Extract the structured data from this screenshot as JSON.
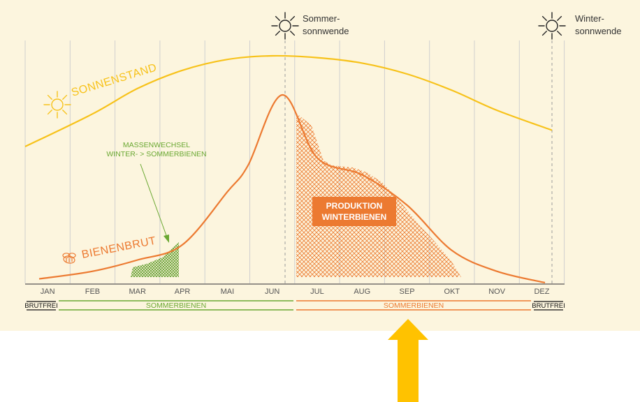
{
  "chart_data": {
    "type": "line",
    "categories": [
      "JAN",
      "FEB",
      "MAR",
      "APR",
      "MAI",
      "JUN",
      "JUL",
      "AUG",
      "SEP",
      "OKT",
      "NOV",
      "DEZ"
    ],
    "series": [
      {
        "name": "SONNENSTAND",
        "values": [
          0.5,
          0.68,
          0.82,
          0.92,
          0.98,
          1.0,
          0.99,
          0.96,
          0.9,
          0.81,
          0.7,
          0.59
        ]
      },
      {
        "name": "BIENENBRUT",
        "values": [
          0.02,
          0.06,
          0.12,
          0.2,
          0.48,
          0.92,
          0.66,
          0.57,
          0.41,
          0.17,
          0.06,
          0.0
        ]
      }
    ],
    "annotations": {
      "summer_solstice": {
        "line1": "Sommer-",
        "line2": "sonnwende"
      },
      "winter_solstice": {
        "line1": "Winter-",
        "line2": "sonnwende"
      },
      "massenwechsel": {
        "line1": "MASSENWECHSEL",
        "line2": "WINTER- > SOMMERBIENEN"
      },
      "produktion": {
        "line1": "PRODUKTION",
        "line2": "WINTERBIENEN"
      }
    },
    "phases": {
      "brutfrei_left": "BRUTFREI",
      "sommerbienen_1": "SOMMERBIENEN",
      "sommerbienen_2": "SOMMERBIENEN",
      "brutfrei_right": "BRUTFREI"
    },
    "colors": {
      "background": "#fcf5de",
      "sun": "#f7c21a",
      "brood": "#ec7a31",
      "green": "#6aa832",
      "arrow": "#ffc200",
      "grid": "#cfcfcf"
    }
  }
}
